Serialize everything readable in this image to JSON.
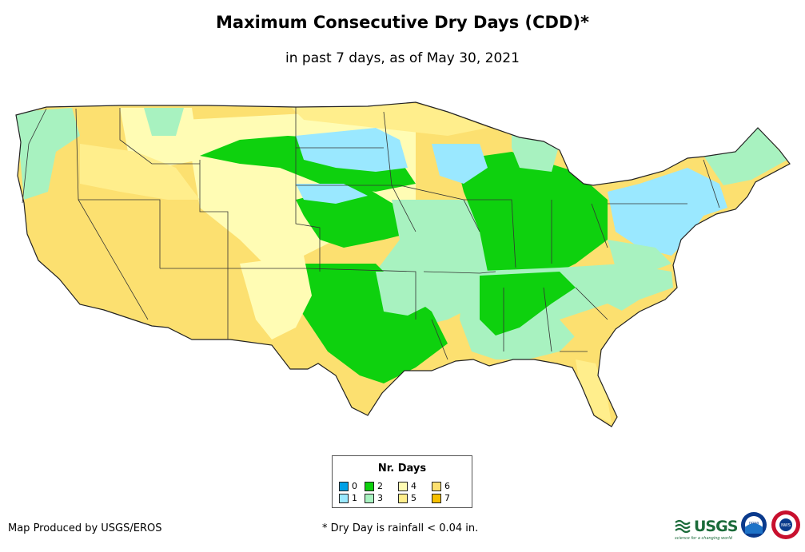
{
  "title": "Maximum Consecutive Dry Days (CDD)*",
  "subtitle": "in past 7 days, as of May 30, 2021",
  "legend": {
    "title": "Nr. Days",
    "items": [
      {
        "label": "0",
        "color": "#00a0e6"
      },
      {
        "label": "1",
        "color": "#9ae8ff"
      },
      {
        "label": "2",
        "color": "#0ed10e"
      },
      {
        "label": "3",
        "color": "#a8f2c0"
      },
      {
        "label": "4",
        "color": "#fffcb4"
      },
      {
        "label": "5",
        "color": "#ffee8c"
      },
      {
        "label": "6",
        "color": "#fce070"
      },
      {
        "label": "7",
        "color": "#f6c000"
      }
    ]
  },
  "footer": {
    "producer": "Map Produced by USGS/EROS",
    "footnote": "* Dry Day is rainfall < 0.04 in."
  },
  "logos": {
    "usgs_text": "USGS",
    "usgs_tagline": "science for a changing world",
    "noaa_text": "noaa",
    "nws_text": "NWS"
  }
}
